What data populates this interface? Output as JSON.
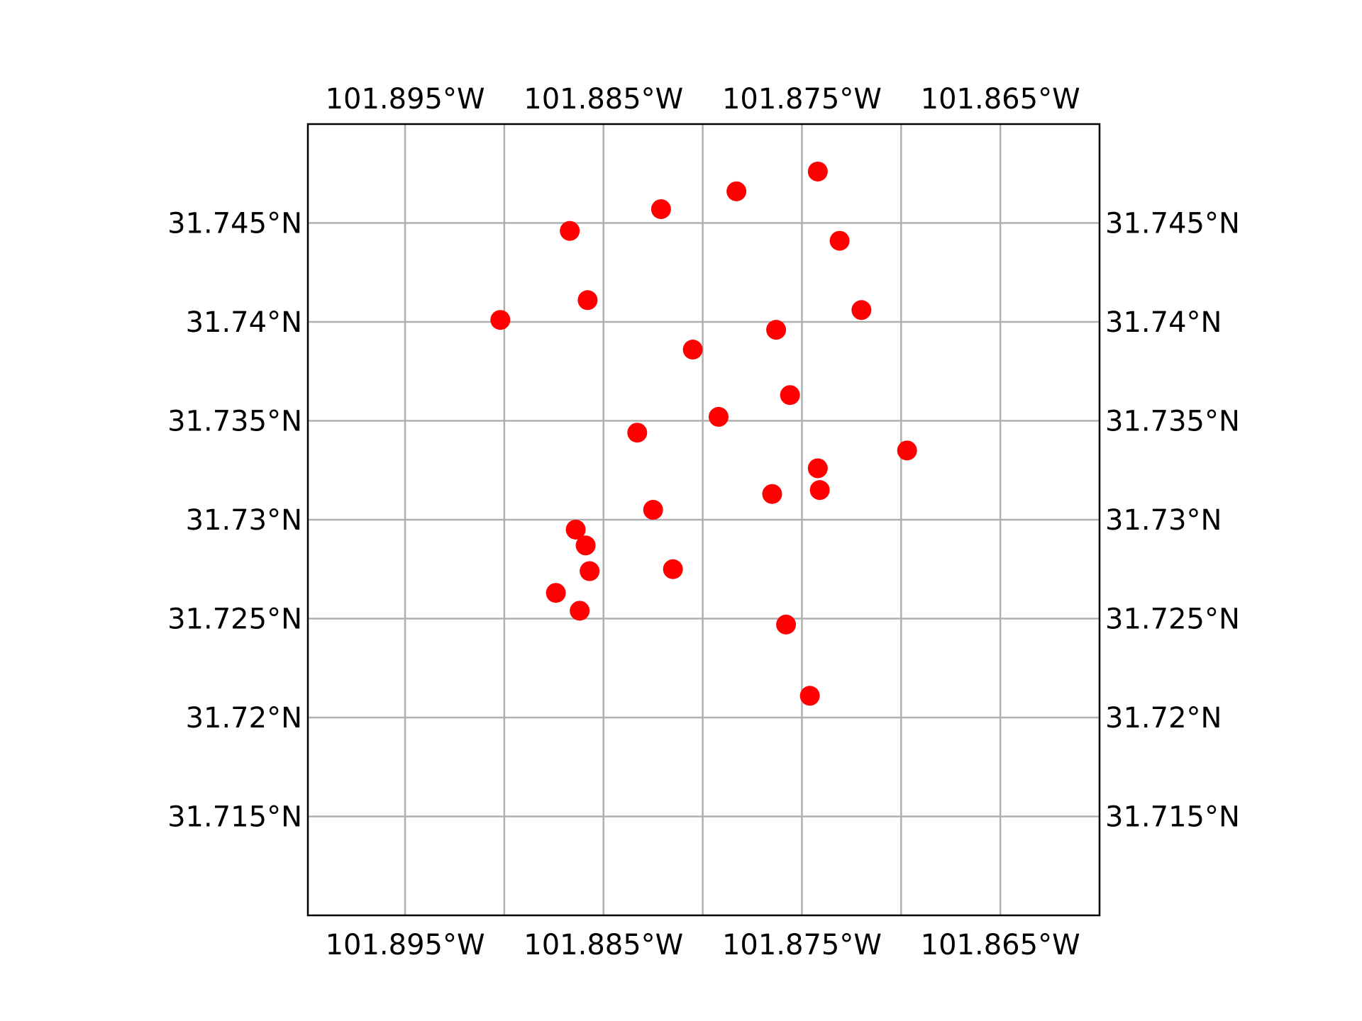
{
  "chart_data": {
    "type": "scatter",
    "title": "",
    "xlabel": "",
    "ylabel": "",
    "xlim": [
      -101.8999,
      -101.86
    ],
    "ylim": [
      31.71,
      31.75
    ],
    "grid": true,
    "marker_color": "#ff0000",
    "grid_color": "#b0b0b0",
    "x_ticks": [
      -101.895,
      -101.89,
      -101.885,
      -101.88,
      -101.875,
      -101.87,
      -101.865
    ],
    "x_tick_labels": [
      "101.895°W",
      "101.885°W",
      "101.875°W",
      "101.865°W"
    ],
    "x_labeled_ticks": [
      -101.895,
      -101.885,
      -101.875,
      -101.865
    ],
    "y_ticks": [
      31.715,
      31.72,
      31.725,
      31.73,
      31.735,
      31.74,
      31.745
    ],
    "y_tick_labels": [
      "31.715°N",
      "31.72°N",
      "31.725°N",
      "31.73°N",
      "31.735°N",
      "31.74°N",
      "31.745°N"
    ],
    "series": [
      {
        "points": [
          {
            "lon": -101.8742,
            "lat": 31.7476
          },
          {
            "lon": -101.8783,
            "lat": 31.7466
          },
          {
            "lon": -101.8821,
            "lat": 31.7457
          },
          {
            "lon": -101.8867,
            "lat": 31.7446
          },
          {
            "lon": -101.8731,
            "lat": 31.7441
          },
          {
            "lon": -101.8858,
            "lat": 31.7411
          },
          {
            "lon": -101.872,
            "lat": 31.7406
          },
          {
            "lon": -101.8902,
            "lat": 31.7401
          },
          {
            "lon": -101.8763,
            "lat": 31.7396
          },
          {
            "lon": -101.8805,
            "lat": 31.7386
          },
          {
            "lon": -101.8756,
            "lat": 31.7363
          },
          {
            "lon": -101.8792,
            "lat": 31.7352
          },
          {
            "lon": -101.8833,
            "lat": 31.7344
          },
          {
            "lon": -101.8697,
            "lat": 31.7335
          },
          {
            "lon": -101.8742,
            "lat": 31.7326
          },
          {
            "lon": -101.8741,
            "lat": 31.7315
          },
          {
            "lon": -101.8765,
            "lat": 31.7313
          },
          {
            "lon": -101.8825,
            "lat": 31.7305
          },
          {
            "lon": -101.8864,
            "lat": 31.7295
          },
          {
            "lon": -101.8859,
            "lat": 31.7287
          },
          {
            "lon": -101.8857,
            "lat": 31.7274
          },
          {
            "lon": -101.8815,
            "lat": 31.7275
          },
          {
            "lon": -101.8874,
            "lat": 31.7263
          },
          {
            "lon": -101.8862,
            "lat": 31.7254
          },
          {
            "lon": -101.8758,
            "lat": 31.7247
          },
          {
            "lon": -101.8746,
            "lat": 31.7211
          }
        ]
      }
    ]
  }
}
